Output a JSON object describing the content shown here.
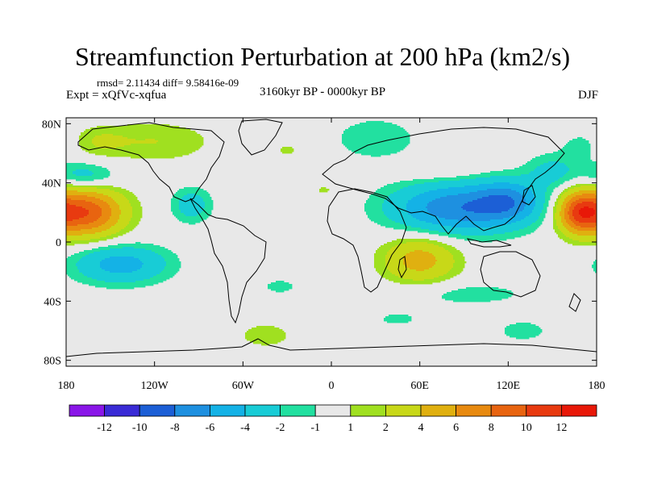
{
  "title": "Streamfunction Perturbation at 200 hPa (km2/s)",
  "stats": "rmsd= 2.11434 diff= 9.58416e-09",
  "experiment": "Expt = xQfVc-xqfua",
  "period": "3160kyr BP - 0000kyr BP",
  "season": "DJF",
  "axes": {
    "y_ticks": [
      {
        "label": "80N",
        "lat": 80
      },
      {
        "label": "40N",
        "lat": 40
      },
      {
        "label": "0",
        "lat": 0
      },
      {
        "label": "40S",
        "lat": -40
      },
      {
        "label": "80S",
        "lat": -80
      }
    ],
    "x_ticks": [
      {
        "label": "180",
        "lon": -180
      },
      {
        "label": "120W",
        "lon": -120
      },
      {
        "label": "60W",
        "lon": -60
      },
      {
        "label": "0",
        "lon": 0
      },
      {
        "label": "60E",
        "lon": 60
      },
      {
        "label": "120E",
        "lon": 120
      },
      {
        "label": "180",
        "lon": 180
      }
    ]
  },
  "colorbar": {
    "colors": [
      "#8a16e8",
      "#3a2bd6",
      "#1c5fd6",
      "#1e90e0",
      "#14b2e6",
      "#18ccd6",
      "#22e0a0",
      "#e8e8e8",
      "#a0e020",
      "#c8d818",
      "#e0b010",
      "#e88a10",
      "#e86410",
      "#e83a10",
      "#e81808"
    ],
    "labels": [
      "-12",
      "-10",
      "-8",
      "-6",
      "-4",
      "-2",
      "-1",
      "1",
      "2",
      "4",
      "6",
      "8",
      "10",
      "12"
    ]
  },
  "anomalies": [
    {
      "lon": -168,
      "lat": 20,
      "rx": 26,
      "ry": 16,
      "amp": 10
    },
    {
      "lon": 168,
      "lat": 20,
      "rx": 14,
      "ry": 14,
      "amp": 8
    },
    {
      "lon": -143,
      "lat": -15,
      "rx": 32,
      "ry": 13,
      "amp": -5
    },
    {
      "lon": -168,
      "lat": 45,
      "rx": 22,
      "ry": 9,
      "amp": -3
    },
    {
      "lon": -120,
      "lat": 68,
      "rx": 40,
      "ry": 14,
      "amp": 2
    },
    {
      "lon": -158,
      "lat": 68,
      "rx": 18,
      "ry": 10,
      "amp": 1.5
    },
    {
      "lon": -95,
      "lat": 25,
      "rx": 14,
      "ry": 12,
      "amp": -3
    },
    {
      "lon": 85,
      "lat": 23,
      "rx": 44,
      "ry": 17,
      "amp": -7.5
    },
    {
      "lon": 120,
      "lat": 28,
      "rx": 22,
      "ry": 14,
      "amp": -5
    },
    {
      "lon": 30,
      "lat": 70,
      "rx": 28,
      "ry": 14,
      "amp": -2
    },
    {
      "lon": 60,
      "lat": -12,
      "rx": 25,
      "ry": 16,
      "amp": 5
    },
    {
      "lon": 70,
      "lat": 48,
      "rx": 30,
      "ry": 6,
      "amp": 1.3
    },
    {
      "lon": 150,
      "lat": 48,
      "rx": 18,
      "ry": 12,
      "amp": -2.5
    },
    {
      "lon": 90,
      "lat": -35,
      "rx": 52,
      "ry": 9,
      "amp": -1.5
    },
    {
      "lon": 130,
      "lat": -60,
      "rx": 22,
      "ry": 9,
      "amp": -1.4
    },
    {
      "lon": -35,
      "lat": -30,
      "rx": 14,
      "ry": 6,
      "amp": -1.4
    },
    {
      "lon": -45,
      "lat": -63,
      "rx": 22,
      "ry": 10,
      "amp": 1.5
    },
    {
      "lon": 45,
      "lat": -52,
      "rx": 18,
      "ry": 6,
      "amp": -1.3
    },
    {
      "lon": 170,
      "lat": 65,
      "rx": 14,
      "ry": 10,
      "amp": -1.5
    },
    {
      "lon": -30,
      "lat": 62,
      "rx": 10,
      "ry": 6,
      "amp": 1.2
    },
    {
      "lon": -5,
      "lat": 35,
      "rx": 10,
      "ry": 5,
      "amp": 1.2
    }
  ]
}
